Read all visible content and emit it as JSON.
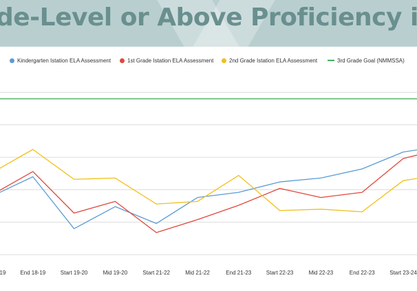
{
  "header": {
    "title": "de-Level or Above Proficiency in Readi",
    "banner_color": "#b9cfcf",
    "title_color": "#6a8f8f"
  },
  "chart_data": {
    "type": "line",
    "categories": [
      "19",
      "End 18-19",
      "Start 19-20",
      "Mid 19-20",
      "Start 21-22",
      "Mid 21-22",
      "End 21-23",
      "Start 22-23",
      "Mid 22-23",
      "End 22-23",
      "Start 23-24",
      ""
    ],
    "series": [
      {
        "name": "Kindergarten Istation ELA Assessment",
        "color": "#5b9bd5",
        "values": [
          45,
          60,
          20,
          37,
          24,
          44,
          48,
          56,
          59,
          66,
          79,
          84
        ]
      },
      {
        "name": "1st Grade Istation ELA Assessment",
        "color": "#e0473b",
        "values": [
          46,
          64,
          32,
          41,
          17,
          27,
          38,
          51,
          44,
          48,
          74,
          82
        ]
      },
      {
        "name": "2nd Grade Istation ELA Assessment",
        "color": "#f2bf1a",
        "values": [
          63,
          81,
          58,
          59,
          39,
          41,
          61,
          34,
          35,
          33,
          57,
          62
        ]
      },
      {
        "name": "3rd Grade Goal (NMMSSA)",
        "color": "#43b05c",
        "dashed_legend": true,
        "values": [
          120,
          120,
          120,
          120,
          120,
          120,
          120,
          120,
          120,
          120,
          120,
          120
        ]
      }
    ],
    "ylim": [
      -10,
      130
    ],
    "grid": true,
    "legend_position": "top"
  }
}
